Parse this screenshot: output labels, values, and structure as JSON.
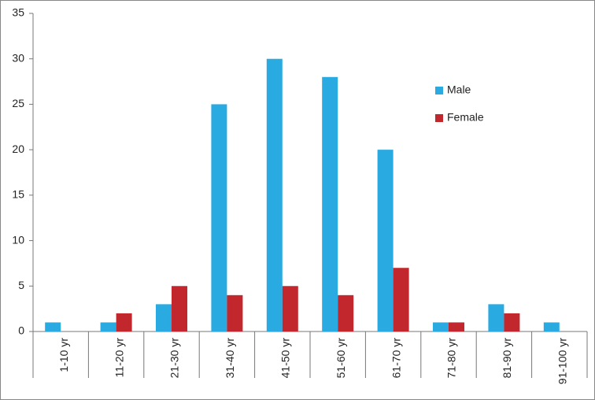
{
  "chart_data": {
    "type": "bar",
    "categories": [
      "1-10 yr",
      "11-20 yr",
      "21-30 yr",
      "31-40 yr",
      "41-50 yr",
      "51-60 yr",
      "61-70 yr",
      "71-80 yr",
      "81-90 yr",
      "91-100 yr"
    ],
    "series": [
      {
        "name": "Male",
        "color": "#29abe2",
        "values": [
          1,
          1,
          3,
          25,
          30,
          28,
          20,
          1,
          3,
          1
        ]
      },
      {
        "name": "Female",
        "color": "#c1272d",
        "values": [
          0,
          2,
          5,
          4,
          5,
          4,
          7,
          1,
          2,
          0
        ]
      }
    ],
    "ylim": [
      0,
      35
    ],
    "yticks": [
      0,
      5,
      10,
      15,
      20,
      25,
      30,
      35
    ],
    "grid": false,
    "legend": "right"
  }
}
